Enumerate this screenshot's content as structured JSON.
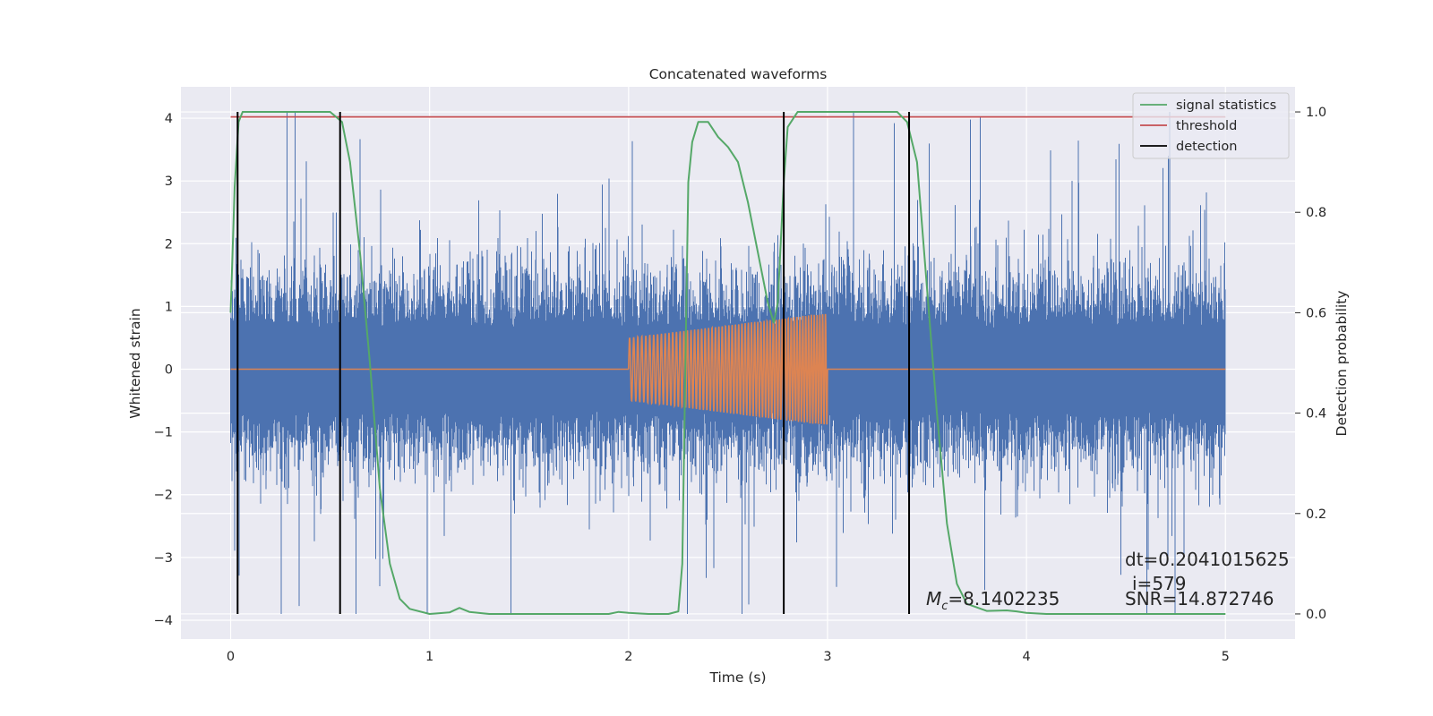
{
  "chart_data": {
    "type": "line",
    "title": "Concatenated waveforms",
    "xlabel": "Time (s)",
    "ylabel": "Whitened strain",
    "y2label": "Detection probability",
    "xlim": [
      -0.25,
      5.35
    ],
    "ylim": [
      -4.3,
      4.5
    ],
    "y2lim": [
      -0.05,
      1.05
    ],
    "xticks": [
      0,
      1,
      2,
      3,
      4,
      5
    ],
    "xtick_labels": [
      "0",
      "1",
      "2",
      "3",
      "4",
      "5"
    ],
    "yticks": [
      -4,
      -3,
      -2,
      -1,
      0,
      1,
      2,
      3,
      4
    ],
    "ytick_labels": [
      "−4",
      "−3",
      "−2",
      "−1",
      "0",
      "1",
      "2",
      "3",
      "4"
    ],
    "y2ticks": [
      0.0,
      0.2,
      0.4,
      0.6,
      0.8,
      1.0
    ],
    "y2tick_labels": [
      "0.0",
      "0.2",
      "0.4",
      "0.6",
      "0.8",
      "1.0"
    ],
    "grid": true,
    "legend_position": "top-right",
    "colors": {
      "background": "#eaeaf2",
      "grid": "#ffffff",
      "strain": "#4c72b0",
      "template": "#dd8452",
      "signal_statistics": "#55a868",
      "threshold": "#c44e52",
      "detection": "#000000"
    },
    "strain": {
      "x_range": [
        0,
        5
      ],
      "typical_amplitude": 0.65,
      "min": -3.9,
      "max": 4.1
    },
    "template": {
      "x_range": [
        2.0,
        3.0
      ],
      "amplitude_start": 0.5,
      "amplitude_end": 0.9,
      "baseline": 0
    },
    "series": [
      {
        "name": "signal statistics",
        "axis": "right",
        "x": [
          0.0,
          0.02,
          0.04,
          0.06,
          0.1,
          0.5,
          0.56,
          0.6,
          0.65,
          0.7,
          0.75,
          0.8,
          0.85,
          0.9,
          1.0,
          1.1,
          1.15,
          1.2,
          1.3,
          1.5,
          1.9,
          1.95,
          2.0,
          2.1,
          2.2,
          2.25,
          2.27,
          2.29,
          2.3,
          2.32,
          2.35,
          2.4,
          2.45,
          2.5,
          2.55,
          2.6,
          2.65,
          2.7,
          2.73,
          2.75,
          2.78,
          2.8,
          2.85,
          3.0,
          3.35,
          3.4,
          3.45,
          3.5,
          3.55,
          3.6,
          3.65,
          3.7,
          3.8,
          3.9,
          3.95,
          4.0,
          4.1,
          4.5,
          5.0
        ],
        "values": [
          0.6,
          0.85,
          0.98,
          1.0,
          1.0,
          1.0,
          0.98,
          0.9,
          0.72,
          0.5,
          0.25,
          0.1,
          0.03,
          0.01,
          0.0,
          0.003,
          0.012,
          0.004,
          0.0,
          0.0,
          0.0,
          0.004,
          0.002,
          0.0,
          0.0,
          0.005,
          0.1,
          0.6,
          0.86,
          0.94,
          0.98,
          0.98,
          0.95,
          0.93,
          0.9,
          0.82,
          0.72,
          0.62,
          0.58,
          0.62,
          0.86,
          0.97,
          1.0,
          1.0,
          1.0,
          0.98,
          0.9,
          0.65,
          0.4,
          0.18,
          0.06,
          0.02,
          0.006,
          0.007,
          0.005,
          0.002,
          0.0,
          0.0,
          0.0
        ]
      },
      {
        "name": "threshold",
        "axis": "right",
        "x": [
          0.0,
          5.0
        ],
        "values": [
          0.99,
          0.99
        ]
      },
      {
        "name": "detection",
        "axis": "right",
        "type": "vlines",
        "x": [
          0.035,
          0.55,
          2.78,
          3.41
        ],
        "y_range": [
          0.0,
          1.0
        ]
      }
    ],
    "annotations": {
      "dt": "dt=0.2041015625",
      "i": "i=579",
      "mc_symbol": "M",
      "mc_subscript": "c",
      "mc_value": "=8.1402235",
      "snr": "SNR=14.872746"
    }
  }
}
